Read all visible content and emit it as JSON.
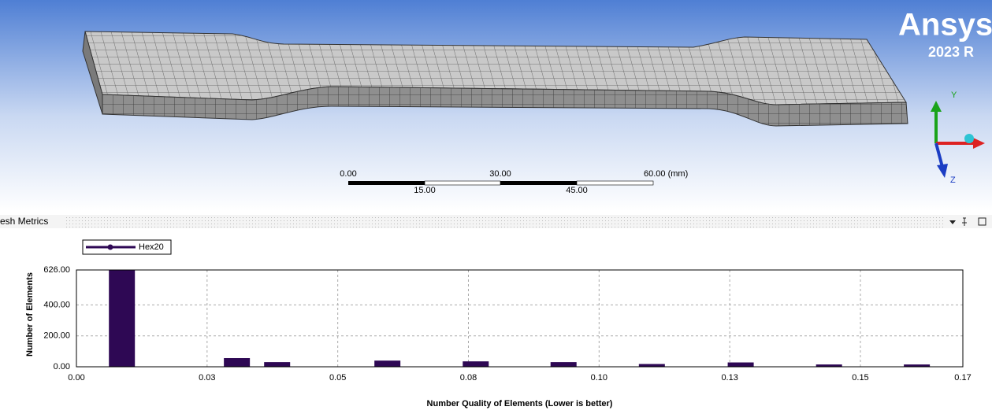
{
  "viewport": {
    "logo": {
      "brand": "Ansys",
      "version": "2023 R"
    },
    "scale_bar": {
      "labels": [
        "0.00",
        "15.00",
        "30.00",
        "45.00",
        "60.00 (mm)"
      ]
    },
    "triad": {
      "y": "Y",
      "z": "Z"
    }
  },
  "panel": {
    "title": "esh Metrics"
  },
  "chart_data": {
    "type": "bar",
    "x_label": "Number Quality of Elements (Lower is better)",
    "y_label": "Number of Elements",
    "x": [
      0.0087,
      0.0307,
      0.0384,
      0.0595,
      0.0764,
      0.0932,
      0.1101,
      0.1271,
      0.144,
      0.1608
    ],
    "series": [
      {
        "name": "Hex20",
        "color": "#2e0854",
        "values": [
          626,
          56,
          30,
          40,
          35,
          30,
          18,
          28,
          15,
          15
        ]
      }
    ],
    "xlim": [
      0,
      0.1696
    ],
    "xticks": [
      {
        "value": 0,
        "label": "0.00"
      },
      {
        "value": 0.025,
        "label": "0.03"
      },
      {
        "value": 0.05,
        "label": "0.05"
      },
      {
        "value": 0.075,
        "label": "0.08"
      },
      {
        "value": 0.1,
        "label": "0.10"
      },
      {
        "value": 0.125,
        "label": "0.13"
      },
      {
        "value": 0.15,
        "label": "0.15"
      },
      {
        "value": 0.1696,
        "label": "0.17"
      }
    ],
    "ylim": [
      0,
      626
    ],
    "yticks": [
      {
        "value": 0,
        "label": "0.00"
      },
      {
        "value": 200,
        "label": "200.00"
      },
      {
        "value": 400,
        "label": "400.00"
      },
      {
        "value": 626,
        "label": "626.00"
      }
    ],
    "grid": true,
    "legend": "top-left"
  }
}
